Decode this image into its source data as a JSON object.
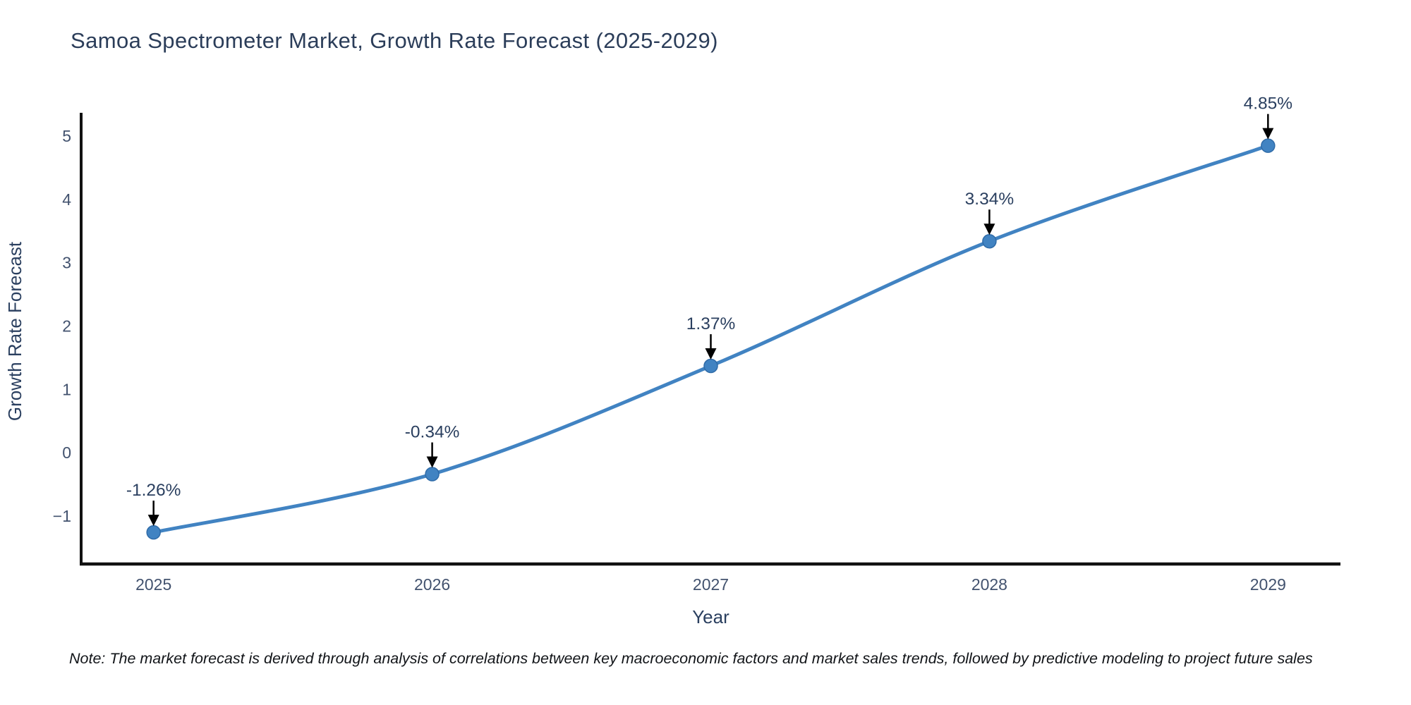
{
  "chart_data": {
    "type": "line",
    "title": "Samoa Spectrometer Market, Growth Rate Forecast (2025-2029)",
    "xlabel": "Year",
    "ylabel": "Growth Rate Forecast",
    "x": [
      2025,
      2026,
      2027,
      2028,
      2029
    ],
    "series": [
      {
        "name": "Growth Rate Forecast",
        "values": [
          -1.26,
          -0.34,
          1.37,
          3.34,
          4.85
        ]
      }
    ],
    "point_labels": [
      "-1.26%",
      "-0.34%",
      "1.37%",
      "3.34%",
      "4.85%"
    ],
    "yticks": [
      -1,
      0,
      1,
      2,
      3,
      4,
      5
    ],
    "xticks": [
      "2025",
      "2026",
      "2027",
      "2028",
      "2029"
    ],
    "ylim": [
      -1.76,
      5.37
    ],
    "xlim": [
      2024.74,
      2029.26
    ],
    "grid": false,
    "legend": "none",
    "line_shape": "spline",
    "colors": {
      "line": "#4183c2",
      "marker": "#4183c2",
      "marker_edge": "#2f6ba8",
      "axis": "#111111",
      "tick_text": "#42526e",
      "label_text": "#2a3f5f",
      "arrow": "#000000"
    },
    "note": "Note: The market forecast is derived through analysis of correlations between key macroeconomic factors and market sales trends, followed by predictive modeling to project future sales"
  }
}
